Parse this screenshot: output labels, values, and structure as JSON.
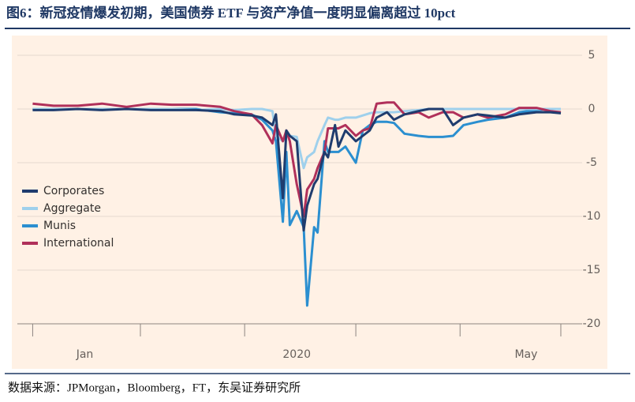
{
  "title": "图6：新冠疫情爆发初期，美国债券 ETF 与资产净值一度明显偏离超过 10pct",
  "source": "数据来源：JPMorgan，Bloomberg，FT，东吴证券研究所",
  "chart_data": {
    "type": "line",
    "x": [
      0,
      6,
      13,
      20,
      27,
      34,
      40,
      47,
      54,
      58,
      63,
      66,
      69,
      70,
      72,
      73,
      74,
      76,
      78,
      79,
      81,
      82,
      84,
      85,
      87,
      88,
      90,
      93,
      95,
      97,
      99,
      102,
      104,
      107,
      111,
      114,
      118,
      121,
      124,
      128,
      131,
      136,
      140,
      145,
      149,
      152
    ],
    "series": [
      {
        "name": "Corporates",
        "color": "#1f3c6e",
        "values": [
          -0.1,
          -0.1,
          0,
          -0.1,
          0,
          -0.1,
          -0.1,
          -0.1,
          -0.2,
          -0.5,
          -0.6,
          -0.8,
          -1.5,
          -0.5,
          -8.3,
          -2,
          -2.5,
          -3,
          -11.3,
          -9,
          -7,
          -6.5,
          -4,
          -4.5,
          -1.5,
          -3.5,
          -2,
          -3,
          -2.5,
          -2,
          -0.8,
          -0.3,
          -1,
          -0.5,
          -0.2,
          0,
          0,
          -1.5,
          -0.8,
          -0.5,
          -0.6,
          -0.8,
          -0.5,
          -0.3,
          -0.3,
          -0.4
        ]
      },
      {
        "name": "Aggregate",
        "color": "#9fd0ec",
        "values": [
          0,
          0,
          0,
          0,
          0,
          0,
          0,
          -0.1,
          0,
          -0.1,
          0,
          0,
          -0.2,
          -2.5,
          -3,
          -2.5,
          -2.5,
          -2.6,
          -5.5,
          -4.5,
          -4,
          -3,
          -1.5,
          -0.8,
          -1,
          -1,
          -0.8,
          -0.8,
          -0.6,
          -0.4,
          -0.3,
          -0.3,
          -0.3,
          -0.2,
          -0.1,
          0,
          0,
          0,
          0,
          0,
          0,
          0,
          0,
          0,
          0,
          0
        ]
      },
      {
        "name": "Munis",
        "color": "#2b8fd0",
        "values": [
          0,
          0,
          0,
          0,
          0,
          0,
          0,
          0,
          -0.3,
          -0.4,
          -0.5,
          -1,
          -2,
          -3,
          -10.5,
          -4,
          -10.8,
          -9.5,
          -11,
          -18.3,
          -11,
          -11.5,
          -3,
          -4,
          -4,
          -4,
          -3.5,
          -5,
          -2,
          -1.5,
          -1.2,
          -1.2,
          -1.3,
          -2.3,
          -2.5,
          -2.6,
          -2.6,
          -2.5,
          -1.5,
          -1.2,
          -1,
          -0.8,
          -0.3,
          -0.1,
          0,
          0
        ]
      },
      {
        "name": "International",
        "color": "#b0305a",
        "values": [
          0.5,
          0.3,
          0.3,
          0.5,
          0.2,
          0.5,
          0.4,
          0.4,
          0.2,
          -0.2,
          -0.5,
          -1.5,
          -3.2,
          -1.5,
          -3,
          -2,
          -3,
          -7,
          -10,
          -7.5,
          -6.5,
          -5.5,
          -4,
          -1.8,
          -1.8,
          -1.8,
          -1.5,
          -2.5,
          -2,
          -1.8,
          0.5,
          0.6,
          0.6,
          -0.5,
          -0.3,
          -0.8,
          -0.3,
          -0.3,
          -0.8,
          -0.5,
          -0.8,
          -0.5,
          0.1,
          0.1,
          -0.2,
          -0.3
        ]
      }
    ],
    "xlim": [
      -6,
      157
    ],
    "xticks": [
      {
        "value": 15,
        "label": "Jan"
      },
      {
        "value": 76,
        "label": "2020"
      },
      {
        "value": 142,
        "label": "May"
      }
    ],
    "xminorticks": [
      0,
      31,
      61,
      93,
      123,
      152
    ],
    "ylim": [
      -20,
      5
    ],
    "yticks": [
      5,
      0,
      -5,
      -10,
      -15,
      -20
    ],
    "grid": true,
    "legend": "left"
  }
}
